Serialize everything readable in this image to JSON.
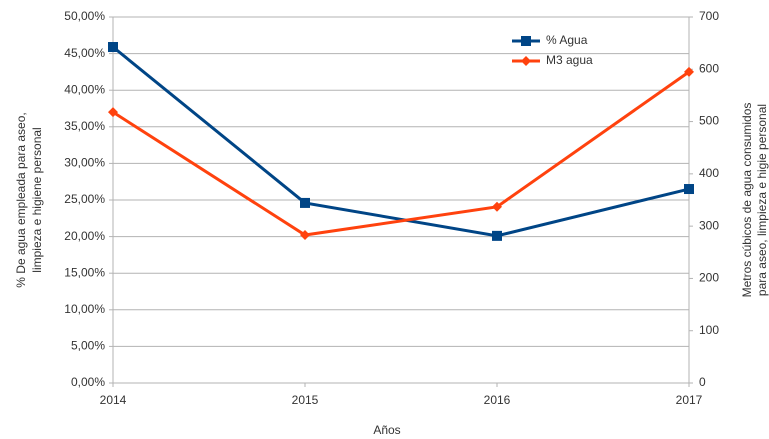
{
  "chart_data": {
    "type": "line",
    "categories": [
      "2014",
      "2015",
      "2016",
      "2017"
    ],
    "series": [
      {
        "name": "% Agua",
        "color": "#004586",
        "marker": "square",
        "values": [
          45.9,
          24.6,
          20.1,
          26.5
        ]
      },
      {
        "name": "M3 agua",
        "color": "#ff420e",
        "marker": "diamond",
        "axis": "y2",
        "values": [
          518,
          283,
          337,
          595
        ]
      }
    ],
    "ylim": [
      0,
      50
    ],
    "yticks": [
      {
        "value": 0,
        "label": "0,00%"
      },
      {
        "value": 5,
        "label": "5,00%"
      },
      {
        "value": 10,
        "label": "10,00%"
      },
      {
        "value": 15,
        "label": "15,00%"
      },
      {
        "value": 20,
        "label": "20,00%"
      },
      {
        "value": 25,
        "label": "25,00%"
      },
      {
        "value": 30,
        "label": "30,00%"
      },
      {
        "value": 35,
        "label": "35,00%"
      },
      {
        "value": 40,
        "label": "40,00%"
      },
      {
        "value": 45,
        "label": "45,00%"
      },
      {
        "value": 50,
        "label": "50,00%"
      }
    ],
    "y2lim": [
      0,
      700
    ],
    "y2ticks": [
      0,
      100,
      200,
      300,
      400,
      500,
      600,
      700
    ],
    "xlabel": "Años",
    "ylabel": [
      "% De agua empleada para aseo,",
      "limpieza e higiene personal"
    ],
    "y2label": [
      "Metros cúbicos de agua consumidos",
      "para aseo, limpieza e higie personal"
    ],
    "grid": true
  }
}
